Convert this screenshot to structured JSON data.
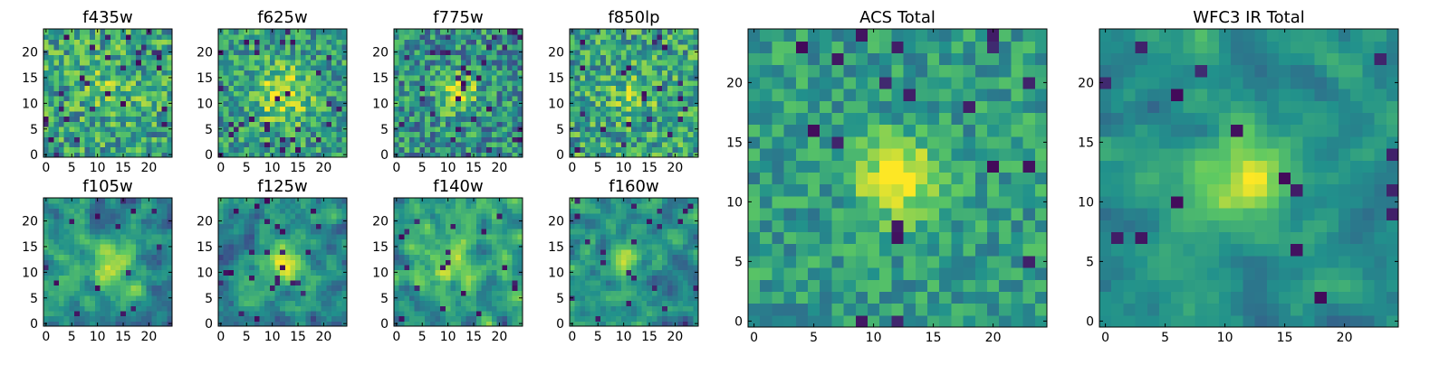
{
  "figure": {
    "title_fontsize_hint": "large",
    "colormap": "viridis",
    "colormap_stops": [
      "#440154",
      "#3b528b",
      "#21918c",
      "#5ec962",
      "#fde725"
    ]
  },
  "chart_data": [
    {
      "type": "heatmap",
      "title": "f435w",
      "xlabel": "",
      "ylabel": "",
      "grid_size": 25,
      "xlim": [
        0,
        24
      ],
      "ylim": [
        0,
        24
      ],
      "xticks": [
        0,
        5,
        10,
        15,
        20
      ],
      "yticks": [
        0,
        5,
        10,
        15,
        20
      ],
      "colorscale_range": [
        0,
        1
      ],
      "peak": [
        13,
        14
      ],
      "peak_amplitude": 0.15,
      "peak_width": 4,
      "noise": 0.55,
      "baseline": 0.58,
      "dark_fraction": 0.05,
      "smooth": 0,
      "seed": 11
    },
    {
      "type": "heatmap",
      "title": "f625w",
      "xlabel": "",
      "ylabel": "",
      "grid_size": 25,
      "xlim": [
        0,
        24
      ],
      "ylim": [
        0,
        24
      ],
      "xticks": [
        0,
        5,
        10,
        15,
        20
      ],
      "yticks": [
        0,
        5,
        10,
        15,
        20
      ],
      "colorscale_range": [
        0,
        1
      ],
      "peak": [
        12,
        12
      ],
      "peak_amplitude": 0.35,
      "peak_width": 4,
      "noise": 0.5,
      "baseline": 0.55,
      "dark_fraction": 0.04,
      "smooth": 0,
      "seed": 23
    },
    {
      "type": "heatmap",
      "title": "f775w",
      "xlabel": "",
      "ylabel": "",
      "grid_size": 25,
      "xlim": [
        0,
        24
      ],
      "ylim": [
        0,
        24
      ],
      "xticks": [
        0,
        5,
        10,
        15,
        20
      ],
      "yticks": [
        0,
        5,
        10,
        15,
        20
      ],
      "colorscale_range": [
        0,
        1
      ],
      "peak": [
        12,
        12
      ],
      "peak_amplitude": 0.45,
      "peak_width": 2.5,
      "noise": 0.55,
      "baseline": 0.5,
      "dark_fraction": 0.05,
      "smooth": 0,
      "seed": 37
    },
    {
      "type": "heatmap",
      "title": "f850lp",
      "xlabel": "",
      "ylabel": "",
      "grid_size": 25,
      "xlim": [
        0,
        24
      ],
      "ylim": [
        0,
        24
      ],
      "xticks": [
        0,
        5,
        10,
        15,
        20
      ],
      "yticks": [
        0,
        5,
        10,
        15,
        20
      ],
      "colorscale_range": [
        0,
        1
      ],
      "peak": [
        12,
        12
      ],
      "peak_amplitude": 0.2,
      "peak_width": 3,
      "noise": 0.55,
      "baseline": 0.58,
      "dark_fraction": 0.04,
      "smooth": 0,
      "seed": 41
    },
    {
      "type": "heatmap",
      "title": "f105w",
      "xlabel": "",
      "ylabel": "",
      "grid_size": 25,
      "xlim": [
        0,
        24
      ],
      "ylim": [
        0,
        24
      ],
      "xticks": [
        0,
        5,
        10,
        15,
        20
      ],
      "yticks": [
        0,
        5,
        10,
        15,
        20
      ],
      "colorscale_range": [
        0,
        1
      ],
      "peak": [
        13,
        11
      ],
      "peak_amplitude": 0.4,
      "peak_width": 3,
      "noise": 0.45,
      "baseline": 0.5,
      "dark_fraction": 0.03,
      "smooth": 1,
      "seed": 53
    },
    {
      "type": "heatmap",
      "title": "f125w",
      "xlabel": "",
      "ylabel": "",
      "grid_size": 25,
      "xlim": [
        0,
        24
      ],
      "ylim": [
        0,
        24
      ],
      "xticks": [
        0,
        5,
        10,
        15,
        20
      ],
      "yticks": [
        0,
        5,
        10,
        15,
        20
      ],
      "colorscale_range": [
        0,
        1
      ],
      "peak": [
        12,
        12
      ],
      "peak_amplitude": 0.45,
      "peak_width": 3,
      "noise": 0.45,
      "baseline": 0.48,
      "dark_fraction": 0.03,
      "smooth": 1,
      "seed": 67
    },
    {
      "type": "heatmap",
      "title": "f140w",
      "xlabel": "",
      "ylabel": "",
      "grid_size": 25,
      "xlim": [
        0,
        24
      ],
      "ylim": [
        0,
        24
      ],
      "xticks": [
        0,
        5,
        10,
        15,
        20
      ],
      "yticks": [
        0,
        5,
        10,
        15,
        20
      ],
      "colorscale_range": [
        0,
        1
      ],
      "peak": [
        10,
        12
      ],
      "peak_amplitude": 0.3,
      "peak_width": 4,
      "noise": 0.5,
      "baseline": 0.55,
      "dark_fraction": 0.04,
      "smooth": 1,
      "seed": 79
    },
    {
      "type": "heatmap",
      "title": "f160w",
      "xlabel": "",
      "ylabel": "",
      "grid_size": 25,
      "xlim": [
        0,
        24
      ],
      "ylim": [
        0,
        24
      ],
      "xticks": [
        0,
        5,
        10,
        15,
        20
      ],
      "yticks": [
        0,
        5,
        10,
        15,
        20
      ],
      "colorscale_range": [
        0,
        1
      ],
      "peak": [
        11,
        12
      ],
      "peak_amplitude": 0.4,
      "peak_width": 2.5,
      "noise": 0.45,
      "baseline": 0.5,
      "dark_fraction": 0.04,
      "smooth": 1,
      "seed": 83
    },
    {
      "type": "heatmap",
      "title": "ACS Total",
      "xlabel": "",
      "ylabel": "",
      "grid_size": 25,
      "xlim": [
        0,
        24
      ],
      "ylim": [
        0,
        24
      ],
      "xticks": [
        0,
        5,
        10,
        15,
        20
      ],
      "yticks": [
        0,
        5,
        10,
        15,
        20
      ],
      "colorscale_range": [
        0,
        1
      ],
      "peak": [
        12,
        12
      ],
      "peak_amplitude": 0.55,
      "peak_width": 2.2,
      "noise": 0.35,
      "baseline": 0.55,
      "dark_fraction": 0.035,
      "smooth": 0,
      "seed": 97
    },
    {
      "type": "heatmap",
      "title": "WFC3 IR Total",
      "xlabel": "",
      "ylabel": "",
      "grid_size": 25,
      "xlim": [
        0,
        24
      ],
      "ylim": [
        0,
        24
      ],
      "xticks": [
        0,
        5,
        10,
        15,
        20
      ],
      "yticks": [
        0,
        5,
        10,
        15,
        20
      ],
      "colorscale_range": [
        0,
        1
      ],
      "peak": [
        12,
        12
      ],
      "peak_amplitude": 0.5,
      "peak_width": 2.6,
      "noise": 0.3,
      "baseline": 0.5,
      "dark_fraction": 0.025,
      "smooth": 1,
      "seed": 101
    }
  ]
}
